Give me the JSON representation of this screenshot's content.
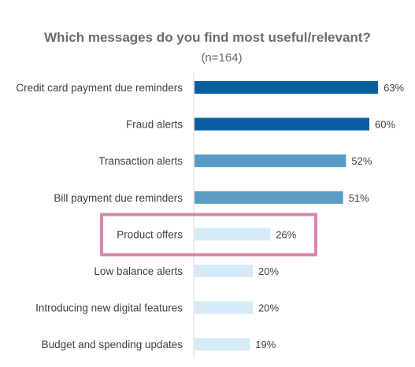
{
  "chart_data": {
    "type": "bar",
    "orientation": "horizontal",
    "title": "Which messages do you find most useful/relevant?",
    "subtitle": "(n=164)",
    "categories": [
      "Credit card payment due reminders",
      "Fraud alerts",
      "Transaction alerts",
      "Bill payment due reminders",
      "Product offers",
      "Low balance alerts",
      "Introducing new digital features",
      "Budget and spending updates"
    ],
    "values": [
      63,
      60,
      52,
      51,
      26,
      20,
      20,
      19
    ],
    "value_labels": [
      "63%",
      "60%",
      "52%",
      "51%",
      "26%",
      "20%",
      "20%",
      "19%"
    ],
    "bar_colors": [
      "#0a5fa0",
      "#0a5fa0",
      "#5b9cc4",
      "#5b9cc4",
      "#d6ebf8",
      "#d6ebf8",
      "#d6ebf8",
      "#d6ebf8"
    ],
    "highlighted_category": "Product offers",
    "highlight_color": "#d987ad",
    "xlim": [
      0,
      100
    ],
    "grid": false,
    "axis_color": "#d9d9d9"
  }
}
